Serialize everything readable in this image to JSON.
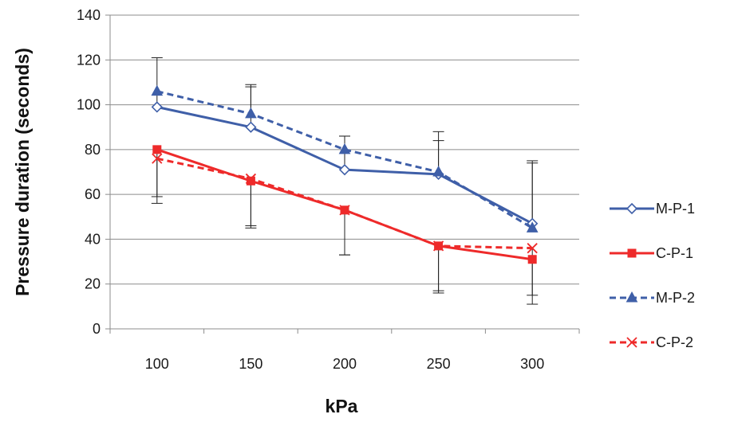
{
  "chart_data": {
    "type": "line",
    "title": "",
    "xlabel": "kPa",
    "ylabel": "Pressure duration (seconds)",
    "categories": [
      "100",
      "150",
      "200",
      "250",
      "300"
    ],
    "ylim": [
      0,
      140
    ],
    "yticks": [
      0,
      20,
      40,
      60,
      80,
      100,
      120,
      140
    ],
    "grid": "horizontal",
    "legend_position": "right",
    "series": [
      {
        "name": "M-P-1",
        "values": [
          99,
          90,
          71,
          69,
          47
        ],
        "err_upper": [
          121,
          109,
          86,
          88,
          75
        ],
        "err_lower": [
          99,
          90,
          71,
          69,
          47
        ],
        "color": "#3f5fa8",
        "dash": "solid",
        "marker": "diamond-open"
      },
      {
        "name": "C-P-1",
        "values": [
          80,
          66,
          53,
          37,
          31
        ],
        "err_upper": [
          80,
          66,
          53,
          37,
          31
        ],
        "err_lower": [
          59,
          46,
          33,
          16,
          15
        ],
        "color": "#ee2a2a",
        "dash": "solid",
        "marker": "square"
      },
      {
        "name": "M-P-2",
        "values": [
          106,
          96,
          80,
          70,
          45
        ],
        "err_upper": [
          106,
          108,
          86,
          84,
          74
        ],
        "err_lower": [
          106,
          96,
          80,
          70,
          45
        ],
        "color": "#3f5fa8",
        "dash": "dashed",
        "marker": "triangle"
      },
      {
        "name": "C-P-2",
        "values": [
          76,
          67,
          53,
          37,
          36
        ],
        "err_upper": [
          76,
          67,
          53,
          37,
          36
        ],
        "err_lower": [
          56,
          45,
          33,
          17,
          11
        ],
        "color": "#ee2a2a",
        "dash": "dashed",
        "marker": "x"
      }
    ]
  }
}
